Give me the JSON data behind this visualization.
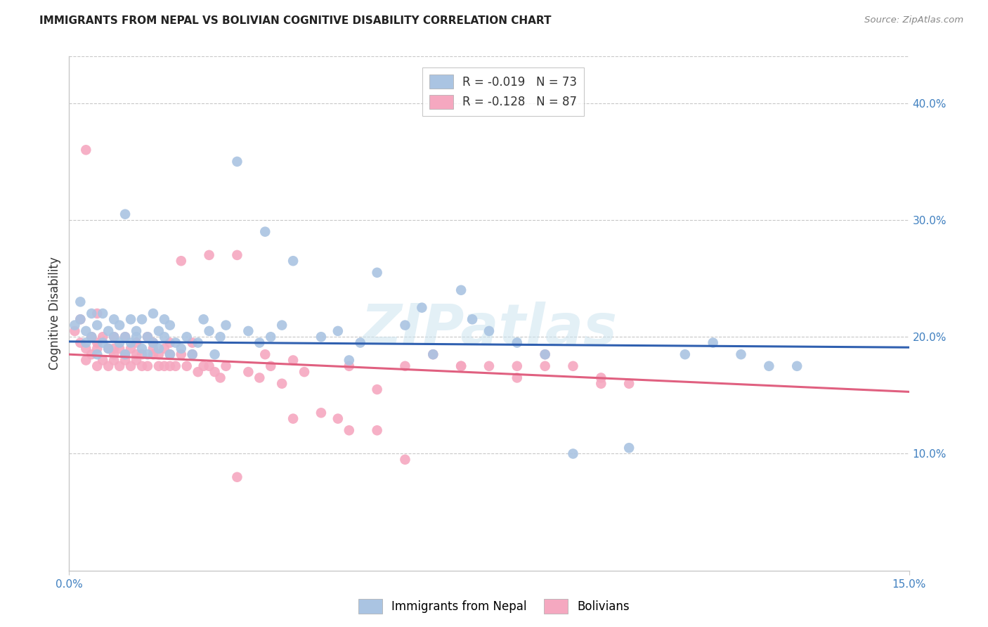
{
  "title": "IMMIGRANTS FROM NEPAL VS BOLIVIAN COGNITIVE DISABILITY CORRELATION CHART",
  "source": "Source: ZipAtlas.com",
  "ylabel": "Cognitive Disability",
  "watermark": "ZIPatlas",
  "xlim": [
    0.0,
    0.15
  ],
  "ylim": [
    0.0,
    0.44
  ],
  "yticks_right": [
    0.1,
    0.2,
    0.3,
    0.4
  ],
  "ytick_labels_right": [
    "10.0%",
    "20.0%",
    "30.0%",
    "40.0%"
  ],
  "nepal_R": -0.019,
  "nepal_N": 73,
  "bolivia_R": -0.128,
  "bolivia_N": 87,
  "nepal_color": "#aac4e2",
  "bolivia_color": "#f5a8c0",
  "nepal_line_color": "#3060b0",
  "bolivia_line_color": "#e06080",
  "legend_label_nepal": "Immigrants from Nepal",
  "legend_label_bolivia": "Bolivians",
  "nepal_line_y0": 0.196,
  "nepal_line_y1": 0.191,
  "bolivia_line_y0": 0.185,
  "bolivia_line_y1": 0.153,
  "nepal_x": [
    0.001,
    0.002,
    0.002,
    0.003,
    0.003,
    0.004,
    0.004,
    0.005,
    0.005,
    0.006,
    0.006,
    0.007,
    0.007,
    0.008,
    0.008,
    0.009,
    0.009,
    0.01,
    0.01,
    0.011,
    0.011,
    0.012,
    0.012,
    0.013,
    0.013,
    0.014,
    0.014,
    0.015,
    0.015,
    0.016,
    0.016,
    0.017,
    0.017,
    0.018,
    0.018,
    0.019,
    0.02,
    0.021,
    0.022,
    0.023,
    0.024,
    0.025,
    0.026,
    0.027,
    0.028,
    0.03,
    0.032,
    0.034,
    0.036,
    0.038,
    0.04,
    0.045,
    0.05,
    0.055,
    0.06,
    0.065,
    0.07,
    0.075,
    0.08,
    0.085,
    0.09,
    0.1,
    0.11,
    0.115,
    0.12,
    0.125,
    0.13,
    0.01,
    0.035,
    0.048,
    0.052,
    0.063,
    0.072
  ],
  "nepal_y": [
    0.21,
    0.23,
    0.215,
    0.205,
    0.195,
    0.22,
    0.2,
    0.185,
    0.21,
    0.195,
    0.22,
    0.205,
    0.19,
    0.215,
    0.2,
    0.195,
    0.21,
    0.185,
    0.2,
    0.215,
    0.195,
    0.2,
    0.205,
    0.19,
    0.215,
    0.185,
    0.2,
    0.195,
    0.22,
    0.205,
    0.19,
    0.2,
    0.215,
    0.185,
    0.21,
    0.195,
    0.19,
    0.2,
    0.185,
    0.195,
    0.215,
    0.205,
    0.185,
    0.2,
    0.21,
    0.35,
    0.205,
    0.195,
    0.2,
    0.21,
    0.265,
    0.2,
    0.18,
    0.255,
    0.21,
    0.185,
    0.24,
    0.205,
    0.195,
    0.185,
    0.1,
    0.105,
    0.185,
    0.195,
    0.185,
    0.175,
    0.175,
    0.305,
    0.29,
    0.205,
    0.195,
    0.225,
    0.215
  ],
  "bolivia_x": [
    0.001,
    0.002,
    0.002,
    0.003,
    0.003,
    0.004,
    0.004,
    0.005,
    0.005,
    0.006,
    0.006,
    0.007,
    0.007,
    0.008,
    0.008,
    0.009,
    0.009,
    0.01,
    0.01,
    0.011,
    0.011,
    0.012,
    0.012,
    0.013,
    0.013,
    0.014,
    0.014,
    0.015,
    0.015,
    0.016,
    0.016,
    0.017,
    0.017,
    0.018,
    0.018,
    0.019,
    0.02,
    0.021,
    0.022,
    0.023,
    0.024,
    0.025,
    0.026,
    0.027,
    0.028,
    0.03,
    0.032,
    0.034,
    0.036,
    0.038,
    0.04,
    0.042,
    0.045,
    0.048,
    0.05,
    0.055,
    0.06,
    0.065,
    0.07,
    0.075,
    0.08,
    0.085,
    0.09,
    0.095,
    0.1,
    0.08,
    0.06,
    0.05,
    0.04,
    0.03,
    0.02,
    0.01,
    0.005,
    0.003,
    0.008,
    0.015,
    0.025,
    0.035,
    0.055,
    0.07,
    0.085,
    0.095,
    0.005,
    0.008,
    0.012,
    0.018,
    0.022
  ],
  "bolivia_y": [
    0.205,
    0.195,
    0.215,
    0.19,
    0.18,
    0.2,
    0.185,
    0.175,
    0.195,
    0.18,
    0.2,
    0.19,
    0.175,
    0.185,
    0.2,
    0.175,
    0.19,
    0.185,
    0.2,
    0.175,
    0.19,
    0.18,
    0.195,
    0.175,
    0.185,
    0.2,
    0.175,
    0.185,
    0.195,
    0.175,
    0.185,
    0.19,
    0.175,
    0.185,
    0.195,
    0.175,
    0.185,
    0.175,
    0.185,
    0.17,
    0.175,
    0.175,
    0.17,
    0.165,
    0.175,
    0.08,
    0.17,
    0.165,
    0.175,
    0.16,
    0.13,
    0.17,
    0.135,
    0.13,
    0.175,
    0.12,
    0.175,
    0.185,
    0.175,
    0.175,
    0.165,
    0.175,
    0.175,
    0.165,
    0.16,
    0.175,
    0.095,
    0.12,
    0.18,
    0.27,
    0.265,
    0.18,
    0.22,
    0.36,
    0.18,
    0.19,
    0.27,
    0.185,
    0.155,
    0.175,
    0.185,
    0.16,
    0.19,
    0.19,
    0.185,
    0.175,
    0.195
  ]
}
